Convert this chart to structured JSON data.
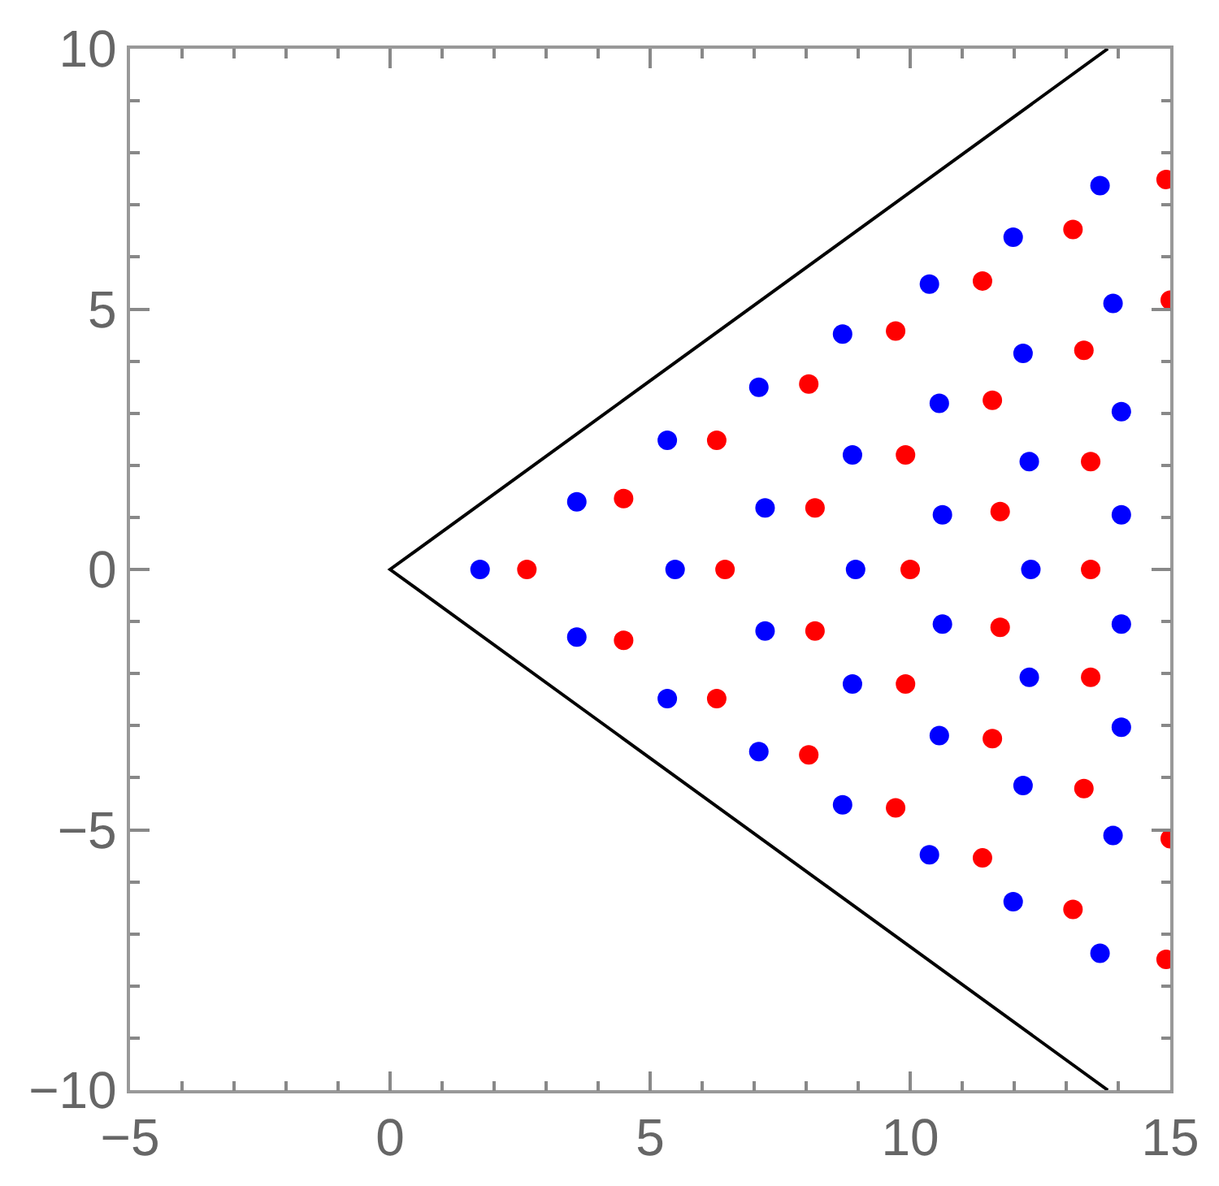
{
  "chart_data": {
    "type": "scatter",
    "marker": "circle",
    "xlim": [
      -5,
      15
    ],
    "ylim": [
      -10,
      10
    ],
    "xticks": [
      -5,
      {
        "value": -4,
        "label": null
      },
      {
        "value": -3,
        "label": null
      },
      {
        "value": -2,
        "label": null
      },
      {
        "value": -1,
        "label": null
      },
      0,
      {
        "value": 1,
        "label": null
      },
      {
        "value": 2,
        "label": null
      },
      {
        "value": 3,
        "label": null
      },
      {
        "value": 4,
        "label": null
      },
      5,
      {
        "value": 6,
        "label": null
      },
      {
        "value": 7,
        "label": null
      },
      {
        "value": 8,
        "label": null
      },
      {
        "value": 9,
        "label": null
      },
      10,
      {
        "value": 11,
        "label": null
      },
      {
        "value": 12,
        "label": null
      },
      {
        "value": 13,
        "label": null
      },
      {
        "value": 14,
        "label": null
      },
      15
    ],
    "yticks": [
      -10,
      {
        "value": -9,
        "label": null
      },
      {
        "value": -8,
        "label": null
      },
      {
        "value": -7,
        "label": null
      },
      {
        "value": -6,
        "label": null
      },
      -5,
      {
        "value": -4,
        "label": null
      },
      {
        "value": -3,
        "label": null
      },
      {
        "value": -2,
        "label": null
      },
      {
        "value": -1,
        "label": null
      },
      0,
      {
        "value": 1,
        "label": null
      },
      {
        "value": 2,
        "label": null
      },
      {
        "value": 3,
        "label": null
      },
      {
        "value": 4,
        "label": null
      },
      5,
      {
        "value": 6,
        "label": null
      },
      {
        "value": 7,
        "label": null
      },
      {
        "value": 8,
        "label": null
      },
      {
        "value": 9,
        "label": null
      },
      10
    ],
    "series": [
      {
        "type": "line",
        "marker": "none",
        "color": "#000000",
        "x": [
          13.8,
          0,
          13.8
        ],
        "values": [
          10,
          0,
          -10
        ]
      },
      {
        "color": "#0000ff",
        "x": [
          1.73,
          3.59,
          5.33,
          5.48,
          7.09,
          7.21,
          8.95,
          8.89,
          8.7,
          10.37,
          10.56,
          10.62,
          12.29,
          12.32,
          12.17,
          11.98,
          13.65,
          13.9,
          14.06,
          14.06,
          3.59,
          5.33,
          7.09,
          7.21,
          8.89,
          8.7,
          10.37,
          10.56,
          10.62,
          12.29,
          12.17,
          11.98,
          13.65,
          13.9,
          14.06,
          14.06
        ],
        "values": [
          0,
          1.3,
          2.48,
          0,
          3.5,
          1.18,
          0,
          2.2,
          4.52,
          5.48,
          3.19,
          1.05,
          2.07,
          0,
          4.15,
          6.38,
          7.37,
          5.11,
          3.03,
          1.05,
          -1.3,
          -2.48,
          -3.5,
          -1.18,
          -2.2,
          -4.52,
          -5.48,
          -3.19,
          -1.05,
          -2.07,
          -4.15,
          -6.38,
          -7.37,
          -5.11,
          -3.03,
          -1.05
        ]
      },
      {
        "color": "#ff0000",
        "x": [
          2.63,
          4.49,
          6.28,
          6.44,
          8.05,
          8.17,
          10.0,
          9.91,
          9.72,
          11.39,
          11.58,
          11.73,
          13.47,
          13.47,
          13.34,
          13.13,
          14.92,
          15.0,
          4.49,
          6.28,
          8.05,
          8.17,
          9.91,
          9.72,
          11.39,
          11.58,
          11.73,
          13.47,
          13.34,
          13.13,
          14.92,
          15.0
        ],
        "values": [
          0,
          1.36,
          2.48,
          0,
          3.56,
          1.18,
          0,
          2.2,
          4.58,
          5.54,
          3.25,
          1.11,
          2.07,
          0,
          4.21,
          6.53,
          7.49,
          5.17,
          -1.36,
          -2.48,
          -3.56,
          -1.18,
          -2.2,
          -4.58,
          -5.54,
          -3.25,
          -1.11,
          -2.07,
          -4.21,
          -6.53,
          -7.49,
          -5.17
        ]
      }
    ]
  }
}
